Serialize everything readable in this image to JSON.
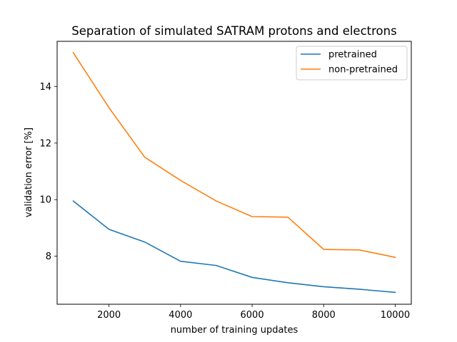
{
  "chart_data": {
    "type": "line",
    "title": "Separation of simulated SATRAM protons and electrons",
    "xlabel": "number of training updates",
    "ylabel": "validation error [%]",
    "x": [
      1000,
      2000,
      3000,
      4000,
      5000,
      6000,
      7000,
      8000,
      9000,
      10000
    ],
    "xlim": [
      550,
      10450
    ],
    "ylim": [
      6.3,
      15.6
    ],
    "xticks": [
      2000,
      4000,
      6000,
      8000,
      10000
    ],
    "yticks": [
      8,
      10,
      12,
      14
    ],
    "grid": false,
    "legend": "top-right",
    "series": [
      {
        "name": "pretrained",
        "color": "#1f77b4",
        "values": [
          9.95,
          8.95,
          8.5,
          7.82,
          7.67,
          7.25,
          7.06,
          6.92,
          6.83,
          6.72
        ]
      },
      {
        "name": "non-pretrained",
        "color": "#ff7f0e",
        "values": [
          15.2,
          13.25,
          11.5,
          10.68,
          9.95,
          9.4,
          9.38,
          8.24,
          8.22,
          7.96
        ]
      }
    ]
  }
}
